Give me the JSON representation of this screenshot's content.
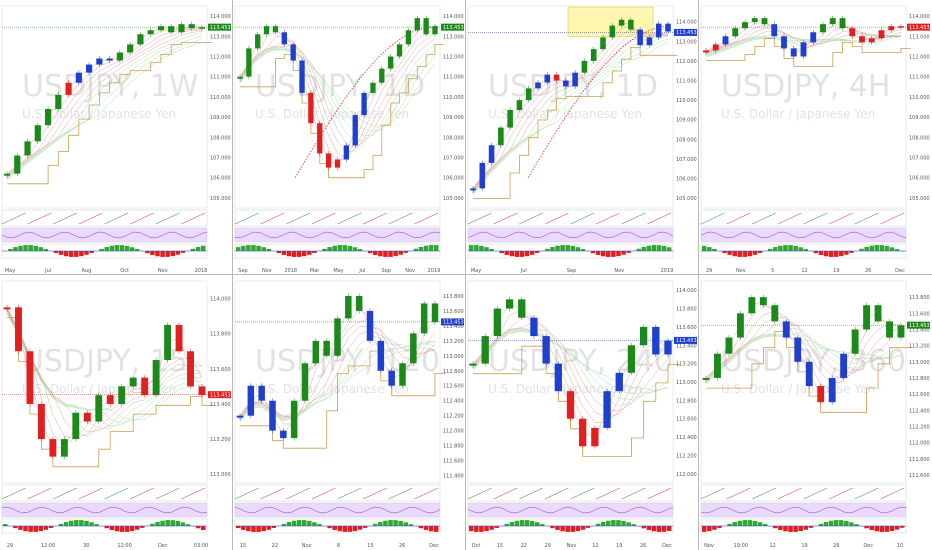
{
  "layout_grid": {
    "rows": 2,
    "cols": 4
  },
  "colors": {
    "bull": "#1b8a1b",
    "bear": "#e02020",
    "neutral": "#1f3fcf",
    "cloud": "#c8a050",
    "ribbon": "#d88080",
    "ribbon2": "#8fd38f",
    "fib": "#d03030",
    "highlight": "#fff6b0",
    "osc_bg": "#ecd9ff",
    "hist_pos": "#2faa2f",
    "hist_neg": "#e02020"
  },
  "chart_data": [
    {
      "type": "line",
      "watermark": "USDJPY, 1W",
      "subtitle": "U.S. Dollar / Japanese Yen",
      "x_ticks": [
        "May",
        "Jul",
        "Aug",
        "Oct",
        "Nov",
        "2018"
      ],
      "y_ticks": [
        "114.000",
        "113.000",
        "112.000",
        "111.000",
        "110.000",
        "109.000",
        "108.000",
        "107.000",
        "106.000",
        "105.000"
      ],
      "ylim": [
        104.5,
        114.5
      ],
      "last_price": "113.453",
      "price_line_color": "#1b8a1b",
      "series": [
        {
          "values": [
            106.2,
            107.1,
            107.8,
            108.6,
            109.4,
            110.1,
            110.7,
            111.2,
            111.6,
            111.9,
            111.8,
            112.2,
            112.6,
            113.1,
            113.3,
            113.5,
            113.2,
            113.6,
            113.4,
            113.45
          ]
        }
      ],
      "colors_seq": [
        "g",
        "g",
        "g",
        "g",
        "g",
        "g",
        "r",
        "b",
        "b",
        "b",
        "b",
        "g",
        "g",
        "g",
        "g",
        "g",
        "g",
        "g",
        "g",
        "g"
      ]
    },
    {
      "type": "line",
      "watermark": "USDJPY, 1D",
      "subtitle": "U.S. Dollar / Japanese Yen",
      "x_ticks": [
        "Sep",
        "Nov",
        "2018",
        "Mar",
        "May",
        "Jul",
        "Sep",
        "Nov",
        "2019"
      ],
      "y_ticks": [
        "114.000",
        "113.000",
        "112.000",
        "111.000",
        "110.000",
        "109.000",
        "108.000",
        "107.000",
        "106.000",
        "105.000"
      ],
      "ylim": [
        104.5,
        114.5
      ],
      "last_price": "113.453",
      "price_line_color": "#1b8a1b",
      "series": [
        {
          "values": [
            111.0,
            112.4,
            113.1,
            113.5,
            113.2,
            112.6,
            111.8,
            110.2,
            108.7,
            107.2,
            106.5,
            106.9,
            107.6,
            109.1,
            110.2,
            110.7,
            111.4,
            112.0,
            112.6,
            113.3,
            113.9,
            113.1,
            113.5
          ]
        }
      ],
      "colors_seq": [
        "g",
        "g",
        "g",
        "g",
        "g",
        "b",
        "b",
        "b",
        "r",
        "r",
        "r",
        "r",
        "b",
        "b",
        "b",
        "g",
        "g",
        "g",
        "g",
        "g",
        "g",
        "g",
        "g"
      ]
    },
    {
      "type": "line",
      "watermark": "USDJPY, 1D",
      "subtitle": "U.S. Dollar / Japanese Yen",
      "x_ticks": [
        "May",
        "Jul",
        "Sep",
        "Nov",
        "2019"
      ],
      "y_ticks": [
        "114.000",
        "113.000",
        "112.000",
        "111.000",
        "110.000",
        "109.000",
        "108.000",
        "107.000",
        "106.000",
        "105.000"
      ],
      "ylim": [
        104.5,
        114.8
      ],
      "last_price": "113.453",
      "price_line_color": "#1f3fcf",
      "series": [
        {
          "values": [
            105.5,
            106.8,
            107.7,
            108.6,
            109.5,
            110.0,
            110.6,
            110.9,
            111.3,
            111.0,
            110.7,
            111.4,
            112.0,
            112.6,
            113.2,
            113.8,
            114.1,
            113.6,
            112.8,
            113.2,
            113.9,
            113.5
          ]
        }
      ],
      "colors_seq": [
        "b",
        "b",
        "b",
        "g",
        "g",
        "g",
        "g",
        "b",
        "b",
        "r",
        "b",
        "b",
        "g",
        "g",
        "g",
        "g",
        "g",
        "g",
        "b",
        "b",
        "b",
        "b"
      ]
    },
    {
      "type": "line",
      "watermark": "USDJPY, 4H",
      "subtitle": "U.S. Dollar / Japanese Yen",
      "x_ticks": [
        "29",
        "Nov",
        "5",
        "12",
        "19",
        "26",
        "Dec"
      ],
      "y_ticks": [
        "114.000",
        "113.000",
        "112.000",
        "111.000",
        "110.000",
        "109.000",
        "108.000",
        "107.000",
        "106.000",
        "105.000"
      ],
      "ylim": [
        104.5,
        114.5
      ],
      "last_price": "113.453",
      "price_line_color": "#e02020",
      "series": [
        {
          "values": [
            112.3,
            112.6,
            113.0,
            113.4,
            113.7,
            113.9,
            113.6,
            113.0,
            112.4,
            112.0,
            112.7,
            113.2,
            113.6,
            113.9,
            113.4,
            113.0,
            112.7,
            112.9,
            113.3,
            113.5,
            113.45
          ]
        }
      ],
      "colors_seq": [
        "r",
        "r",
        "b",
        "g",
        "g",
        "g",
        "g",
        "b",
        "b",
        "b",
        "b",
        "b",
        "g",
        "g",
        "g",
        "r",
        "r",
        "r",
        "r",
        "r",
        "r"
      ]
    },
    {
      "type": "line",
      "watermark": "USDJPY, 15",
      "subtitle": "U.S. Dollar / Japanese Yen",
      "x_ticks": [
        "29",
        "12:00",
        "30",
        "12:00",
        "Dec",
        "03:00"
      ],
      "y_ticks": [
        "114.000",
        "113.800",
        "113.600",
        "113.400",
        "113.200",
        "113.000"
      ],
      "ylim": [
        112.95,
        114.1
      ],
      "last_price": "113.453",
      "price_line_color": "#e02020",
      "series": [
        {
          "values": [
            113.95,
            113.7,
            113.4,
            113.2,
            113.1,
            113.2,
            113.35,
            113.3,
            113.45,
            113.4,
            113.5,
            113.55,
            113.45,
            113.65,
            113.85,
            113.7,
            113.5,
            113.45
          ]
        }
      ],
      "colors_seq": [
        "r",
        "r",
        "r",
        "r",
        "r",
        "g",
        "g",
        "r",
        "g",
        "r",
        "g",
        "g",
        "r",
        "g",
        "g",
        "r",
        "r",
        "r"
      ]
    },
    {
      "type": "line",
      "watermark": "USDJPY, 120",
      "subtitle": "U.S. Dollar / Japanese Yen",
      "x_ticks": [
        "15",
        "22",
        "Nov",
        "8",
        "15",
        "26",
        "Dec"
      ],
      "y_ticks": [
        "113.800",
        "113.600",
        "113.400",
        "113.200",
        "113.000",
        "112.800",
        "112.600",
        "112.400",
        "112.200",
        "112.000",
        "111.800",
        "111.600",
        "111.400"
      ],
      "ylim": [
        111.3,
        114.0
      ],
      "last_price": "113.453",
      "price_line_color": "#1f3fcf",
      "series": [
        {
          "values": [
            112.2,
            112.6,
            112.4,
            112.0,
            111.9,
            112.4,
            112.9,
            113.2,
            113.0,
            113.5,
            113.8,
            113.6,
            113.2,
            112.8,
            112.6,
            112.9,
            113.3,
            113.7,
            113.45
          ]
        }
      ],
      "colors_seq": [
        "b",
        "b",
        "b",
        "b",
        "b",
        "g",
        "g",
        "g",
        "g",
        "g",
        "g",
        "g",
        "b",
        "b",
        "b",
        "g",
        "g",
        "g",
        "g"
      ]
    },
    {
      "type": "line",
      "watermark": "USDJPY, 240",
      "subtitle": "U.S. Dollar / Japanese Yen",
      "x_ticks": [
        "Oct",
        "15",
        "22",
        "29",
        "Nov",
        "12",
        "19",
        "26",
        "Dec"
      ],
      "y_ticks": [
        "114.000",
        "113.800",
        "113.600",
        "113.400",
        "113.200",
        "113.000",
        "112.800",
        "112.600",
        "112.400",
        "112.200",
        "112.000"
      ],
      "ylim": [
        111.9,
        114.1
      ],
      "last_price": "113.453",
      "price_line_color": "#1f3fcf",
      "series": [
        {
          "values": [
            113.2,
            113.5,
            113.8,
            113.9,
            113.7,
            113.5,
            113.2,
            112.9,
            112.6,
            112.3,
            112.5,
            112.9,
            113.1,
            113.4,
            113.6,
            113.3,
            113.45
          ]
        }
      ],
      "colors_seq": [
        "g",
        "g",
        "g",
        "g",
        "g",
        "b",
        "b",
        "b",
        "r",
        "r",
        "r",
        "b",
        "b",
        "g",
        "g",
        "b",
        "b"
      ]
    },
    {
      "type": "line",
      "watermark": "USDJPY, 360",
      "subtitle": "U.S. Dollar / Japanese Yen",
      "x_ticks": [
        "Nov",
        "19:00",
        "12",
        "19",
        "26",
        "Dec",
        "10"
      ],
      "y_ticks": [
        "113.800",
        "113.600",
        "113.400",
        "113.200",
        "113.000",
        "112.800",
        "112.600",
        "112.400",
        "112.200",
        "112.000",
        "111.800",
        "111.600"
      ],
      "ylim": [
        111.5,
        114.0
      ],
      "last_price": "113.453",
      "price_line_color": "#1b8a1b",
      "series": [
        {
          "values": [
            112.8,
            113.1,
            113.3,
            113.6,
            113.8,
            113.7,
            113.5,
            113.3,
            113.0,
            112.7,
            112.5,
            112.8,
            113.1,
            113.4,
            113.7,
            113.5,
            113.3,
            113.45
          ]
        }
      ],
      "colors_seq": [
        "g",
        "g",
        "g",
        "g",
        "g",
        "g",
        "g",
        "b",
        "b",
        "b",
        "r",
        "b",
        "b",
        "g",
        "g",
        "g",
        "g",
        "g"
      ]
    }
  ]
}
